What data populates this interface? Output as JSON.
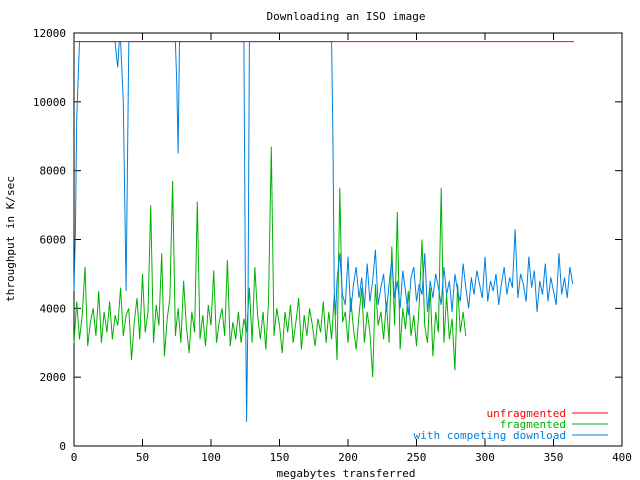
{
  "chart_data": {
    "type": "line",
    "title": "Downloading an ISO image",
    "xlabel": "megabytes transferred",
    "ylabel": "throughput in K/sec",
    "xlim": [
      0,
      400
    ],
    "ylim": [
      0,
      12000
    ],
    "xticks": [
      0,
      50,
      100,
      150,
      200,
      250,
      300,
      350,
      400
    ],
    "yticks": [
      0,
      2000,
      4000,
      6000,
      8000,
      10000,
      12000
    ],
    "grid": false,
    "legend_position": "bottom-right",
    "series": [
      {
        "name": "unfragmented",
        "color": "#ff0000",
        "x": [
          0,
          5,
          40,
          80,
          120,
          160,
          190,
          230,
          270,
          300,
          330,
          365
        ],
        "y": [
          11750,
          11750,
          11750,
          11750,
          11750,
          11750,
          11750,
          11750,
          11750,
          11750,
          11750,
          11750
        ]
      },
      {
        "name": "fragmented",
        "color": "#00b000",
        "x": [
          0,
          2,
          4,
          6,
          8,
          10,
          12,
          14,
          16,
          18,
          20,
          22,
          24,
          26,
          28,
          30,
          32,
          34,
          36,
          38,
          40,
          42,
          44,
          46,
          48,
          50,
          52,
          54,
          56,
          58,
          60,
          62,
          64,
          66,
          68,
          70,
          72,
          74,
          76,
          78,
          80,
          82,
          84,
          86,
          88,
          90,
          92,
          94,
          96,
          98,
          100,
          102,
          104,
          106,
          108,
          110,
          112,
          114,
          116,
          118,
          120,
          122,
          124,
          126,
          128,
          130,
          132,
          134,
          136,
          138,
          140,
          142,
          144,
          146,
          148,
          150,
          152,
          154,
          156,
          158,
          160,
          162,
          164,
          166,
          168,
          170,
          172,
          174,
          176,
          178,
          180,
          182,
          184,
          186,
          188,
          190,
          192,
          194,
          196,
          198,
          200,
          202,
          204,
          206,
          208,
          210,
          212,
          214,
          216,
          218,
          220,
          222,
          224,
          226,
          228,
          230,
          232,
          234,
          236,
          238,
          240,
          242,
          244,
          246,
          248,
          250,
          252,
          254,
          256,
          258,
          260,
          262,
          264,
          266,
          268,
          270,
          272,
          274,
          276,
          278,
          280,
          282,
          284,
          286
        ],
        "y": [
          3000,
          4200,
          3100,
          3800,
          5200,
          2900,
          3600,
          4000,
          3200,
          4500,
          3000,
          3900,
          3300,
          4200,
          3100,
          3800,
          3500,
          4600,
          3200,
          3800,
          4000,
          2500,
          3600,
          4300,
          3100,
          5000,
          3300,
          3900,
          7000,
          3000,
          4100,
          3500,
          5600,
          2600,
          3700,
          4300,
          7700,
          3200,
          4000,
          3000,
          4800,
          3500,
          2700,
          3900,
          3300,
          7100,
          3100,
          3800,
          2900,
          4100,
          3500,
          5100,
          3000,
          3600,
          4000,
          3200,
          5400,
          2900,
          3600,
          3100,
          3900,
          3000,
          3700,
          3300,
          4600,
          3000,
          5200,
          3800,
          3100,
          3900,
          2800,
          4200,
          8700,
          3200,
          4000,
          3500,
          2700,
          3900,
          3300,
          4100,
          3000,
          3600,
          4300,
          2800,
          3800,
          3200,
          4000,
          3500,
          2900,
          3700,
          3300,
          4200,
          3000,
          3900,
          3100,
          4400,
          2500,
          7500,
          3600,
          3900,
          3000,
          4300,
          3400,
          2800,
          3800,
          4600,
          3000,
          3900,
          3300,
          2000,
          4700,
          3500,
          3900,
          3100,
          4200,
          3000,
          5800,
          3500,
          6800,
          2800,
          4000,
          3400,
          4500,
          3200,
          3800,
          2900,
          4100,
          6000,
          3500,
          3000,
          4600,
          2600,
          3900,
          3300,
          7500,
          3000,
          4400,
          3100,
          3700,
          2200,
          4700,
          3300,
          3900,
          3200
        ]
      },
      {
        "name": "with competing download",
        "color": "#0080e0",
        "x": [
          0,
          1,
          2,
          4,
          20,
          30,
          31,
          32,
          33,
          34,
          36,
          38,
          39,
          40,
          60,
          74,
          75,
          76,
          77,
          78,
          100,
          123,
          124,
          125,
          126,
          127,
          128,
          129,
          130,
          160,
          188,
          189,
          190,
          191,
          192,
          194,
          196,
          198,
          200,
          202,
          204,
          206,
          208,
          210,
          212,
          214,
          216,
          218,
          220,
          222,
          224,
          226,
          228,
          230,
          232,
          234,
          236,
          238,
          240,
          242,
          244,
          246,
          248,
          250,
          252,
          254,
          256,
          258,
          260,
          262,
          264,
          266,
          268,
          270,
          272,
          274,
          276,
          278,
          280,
          282,
          284,
          286,
          288,
          290,
          292,
          294,
          296,
          298,
          300,
          302,
          304,
          306,
          308,
          310,
          312,
          314,
          316,
          318,
          320,
          322,
          324,
          326,
          328,
          330,
          332,
          334,
          336,
          338,
          340,
          342,
          344,
          346,
          348,
          350,
          352,
          354,
          356,
          358,
          360,
          362,
          364
        ],
        "y": [
          4500,
          6200,
          9500,
          11750,
          11750,
          11750,
          11300,
          11000,
          11750,
          11750,
          10000,
          4500,
          8000,
          11750,
          11750,
          11750,
          10500,
          8500,
          11750,
          11750,
          11750,
          11750,
          11750,
          5000,
          700,
          4000,
          11750,
          11750,
          11750,
          11750,
          11750,
          9000,
          4400,
          3800,
          4800,
          5600,
          4400,
          4100,
          5500,
          3900,
          4700,
          5200,
          4300,
          4900,
          4000,
          5300,
          4200,
          4800,
          5700,
          4100,
          4600,
          5000,
          3900,
          4700,
          5400,
          4300,
          4800,
          4000,
          5100,
          4500,
          3800,
          4900,
          5200,
          4200,
          4700,
          4400,
          5600,
          3900,
          4800,
          4300,
          5000,
          4600,
          4100,
          5200,
          4400,
          4800,
          3900,
          5000,
          4500,
          4200,
          5300,
          4600,
          4000,
          4900,
          4400,
          5100,
          4700,
          4300,
          5500,
          4200,
          4800,
          4500,
          5000,
          4100,
          4700,
          5200,
          4400,
          4900,
          4600,
          6300,
          4300,
          5000,
          4700,
          4200,
          5500,
          4600,
          5100,
          3900,
          4800,
          4400,
          5300,
          4200,
          4900,
          4500,
          4100,
          5600,
          4400,
          4900,
          4300,
          5200,
          4700
        ]
      }
    ]
  }
}
